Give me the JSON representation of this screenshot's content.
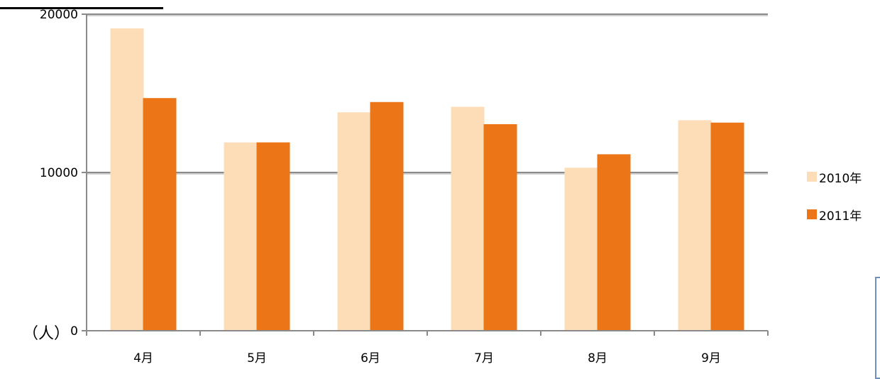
{
  "chart_data": {
    "type": "bar",
    "categories": [
      "4月",
      "5月",
      "6月",
      "7月",
      "8月",
      "9月"
    ],
    "series": [
      {
        "name": "2010年",
        "color": "#FDDDB8",
        "values": [
          19100,
          11900,
          13800,
          14150,
          10300,
          13300
        ]
      },
      {
        "name": "2011年",
        "color": "#EC7518",
        "values": [
          14700,
          11900,
          14450,
          13050,
          11150,
          13150
        ]
      }
    ],
    "yticks": [
      0,
      10000,
      20000
    ],
    "ylim": [
      0,
      20000
    ],
    "ylabel": "（人）",
    "grid": true,
    "legend_position": "right"
  }
}
